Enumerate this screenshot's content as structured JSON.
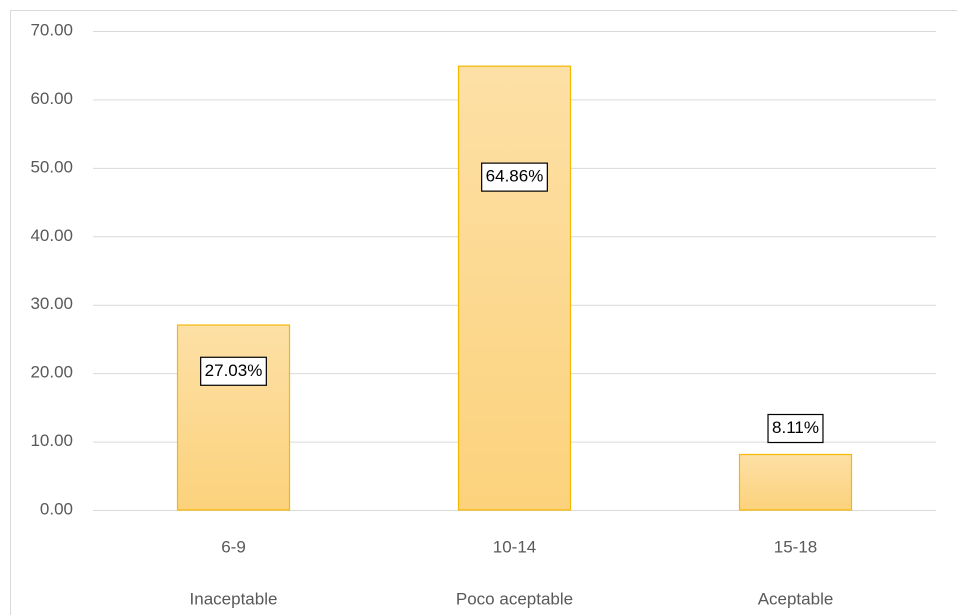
{
  "chart_data": {
    "type": "bar",
    "categories": [
      "6-9",
      "10-14",
      "15-18"
    ],
    "category_groups": [
      "Inaceptable",
      "Poco aceptable",
      "Aceptable"
    ],
    "values": [
      27.03,
      64.86,
      8.11
    ],
    "value_labels": [
      "27.03%",
      "64.86%",
      "8.11%"
    ],
    "color": "#fdd688",
    "ylim": [
      0,
      70
    ],
    "yticks": [
      {
        "value": 0,
        "label": "0.00"
      },
      {
        "value": 10,
        "label": "10.00"
      },
      {
        "value": 20,
        "label": "20.00"
      },
      {
        "value": 30,
        "label": "30.00"
      },
      {
        "value": 40,
        "label": "40.00"
      },
      {
        "value": 50,
        "label": "50.00"
      },
      {
        "value": 60,
        "label": "60.00"
      },
      {
        "value": 70,
        "label": "70.00"
      }
    ],
    "grid": true
  }
}
